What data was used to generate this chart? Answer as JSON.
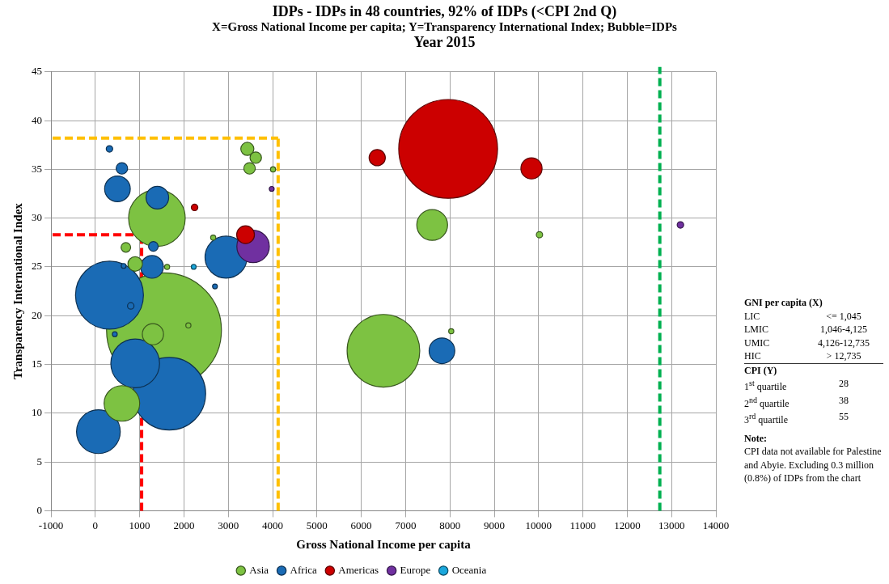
{
  "chart_data": {
    "type": "bubble",
    "title": "IDPs - IDPs in 48 countries, 92% of IDPs (<CPI 2nd Q)",
    "subtitle": "X=Gross National Income per capita; Y=Transparency International Index; Bubble=IDPs\nYear 2015",
    "xlabel": "Gross National Income per capita",
    "ylabel": "Transparency International Index",
    "xlim": [
      -1000,
      14000
    ],
    "xticks": [
      -1000,
      0,
      1000,
      2000,
      3000,
      4000,
      5000,
      6000,
      7000,
      8000,
      9000,
      10000,
      11000,
      12000,
      13000,
      14000
    ],
    "ylim": [
      0,
      45
    ],
    "yticks": [
      0,
      5,
      10,
      15,
      20,
      25,
      30,
      35,
      40,
      45
    ],
    "grid": true,
    "legend": "bottom",
    "series": [
      {
        "name": "Asia",
        "color": "#7dc242",
        "x": [
          1550,
          2100,
          1390,
          690,
          900,
          1300,
          600,
          1620,
          3430,
          3620,
          3480,
          4010,
          2660,
          6500,
          7600,
          10020,
          8030
        ],
        "values": [
          18.5,
          19,
          30,
          27,
          25.3,
          18.1,
          11,
          25,
          37.1,
          36.2,
          35.1,
          35,
          28,
          16.4,
          29.3,
          28.3,
          18.4
        ],
        "sizes": [
          1,
          0.002,
          0.243,
          0.007,
          0.016,
          0.034,
          0.096,
          0.002,
          0.013,
          0.01,
          0.01,
          0.002,
          0.002,
          0.4,
          0.072,
          0.003,
          0.002
        ]
      },
      {
        "name": "Africa",
        "color": "#1a6bb5",
        "x": [
          320,
          600,
          500,
          1400,
          1310,
          1280,
          320,
          800,
          640,
          440,
          900,
          1670,
          70,
          2950,
          2700,
          7820
        ],
        "values": [
          37.1,
          35.1,
          33,
          32.1,
          27.1,
          25,
          22.1,
          21,
          25.1,
          18.1,
          15.1,
          12,
          8.1,
          26,
          23,
          16.4
        ],
        "sizes": [
          0.0032,
          0.01,
          0.05,
          0.039,
          0.007,
          0.039,
          0.35,
          0.0032,
          0.0018,
          0.0018,
          0.18,
          0.4,
          0.145,
          0.134,
          0.0018,
          0.05
        ]
      },
      {
        "name": "Americas",
        "color": "#cc0000",
        "x": [
          7960,
          6360,
          9840,
          2240,
          3390
        ],
        "values": [
          37.1,
          36.2,
          35.1,
          31.1,
          28.3
        ],
        "sizes": [
          0.74,
          0.02,
          0.034,
          0.0032,
          0.024
        ]
      },
      {
        "name": "Europe",
        "color": "#7030a0",
        "x": [
          3560,
          3980,
          13200
        ],
        "values": [
          27.1,
          33,
          29.3
        ],
        "sizes": [
          0.08,
          0.0018,
          0.0032
        ]
      },
      {
        "name": "Oceania",
        "color": "#1aa7dc",
        "x": [
          2220
        ],
        "values": [
          25
        ],
        "sizes": [
          0.0018
        ]
      }
    ],
    "ref_lines": [
      {
        "axis": "x",
        "value": 1045,
        "color": "#ff0000",
        "line_style": "dashed"
      },
      {
        "axis": "y",
        "value": 28.3,
        "color": "#ff0000",
        "line_style": "dashed"
      },
      {
        "axis": "x",
        "value": 4125,
        "color": "#ffc000",
        "line_style": "dashed"
      },
      {
        "axis": "y",
        "value": 38.2,
        "color": "#ffc000",
        "line_style": "dashed"
      },
      {
        "axis": "x",
        "value": 12735,
        "color": "#00b050",
        "line_style": "dashed"
      }
    ],
    "annotations": [
      "GNI per capita (X)",
      "LIC",
      "<= 1,045",
      "LMIC",
      "1,046-4,125",
      "UMIC",
      "4,126-12,735",
      "HIC",
      "> 12,735",
      "CPI (Y)",
      "1$^{st}$ quartile",
      "28",
      "2$^{nd}$ quartile",
      "38",
      "3$^{rd}$ quartile",
      "55",
      "Note:",
      "CPI data not available for Palestine and Abyie. Excluding 0.3 million (0.8%) of IDPs from the chart"
    ]
  }
}
